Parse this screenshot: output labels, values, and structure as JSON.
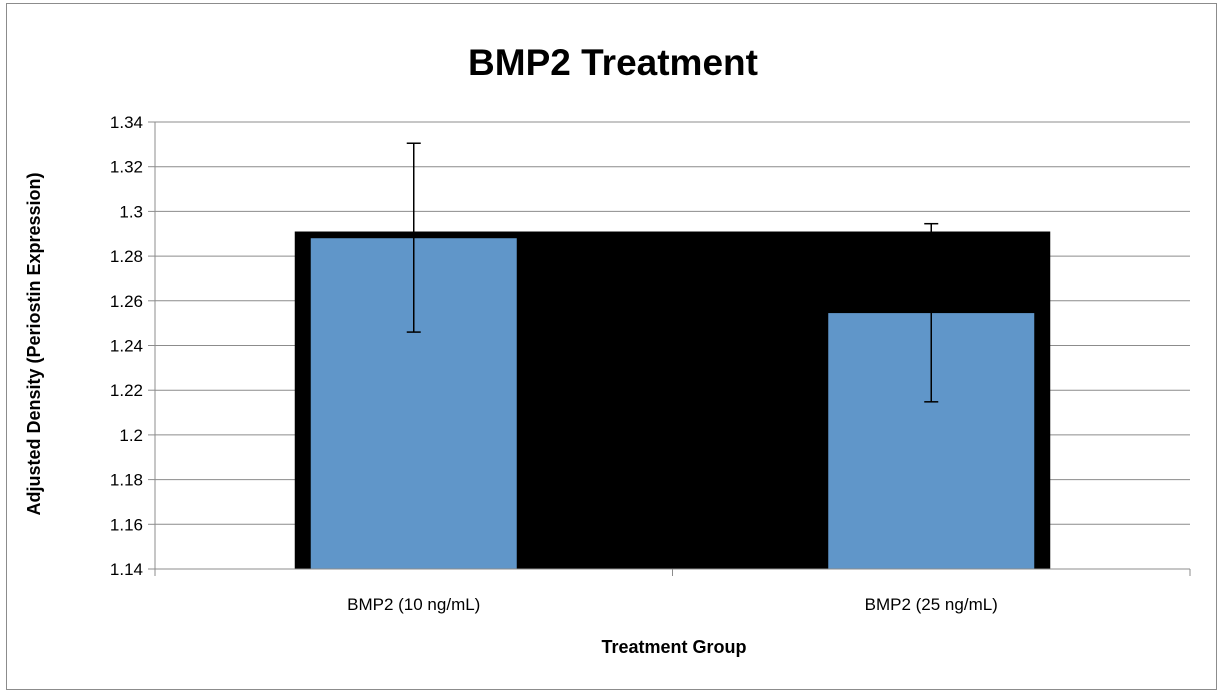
{
  "chart_data": {
    "type": "bar",
    "title": "BMP2 Treatment",
    "xlabel": "Treatment Group",
    "ylabel": "Adjusted Density (Periostin Expression)",
    "categories": [
      "BMP2 (10 ng/mL)",
      "BMP2 (25 ng/mL)"
    ],
    "series": [
      {
        "values": [
          1.288,
          1.2545
        ],
        "error_upper": [
          1.3305,
          1.2945
        ],
        "error_lower": [
          1.246,
          1.2148
        ],
        "color": "#6096c9"
      }
    ],
    "ylim": [
      1.14,
      1.34
    ],
    "yticks": [
      "1.34",
      "1.32",
      "1.3",
      "1.28",
      "1.26",
      "1.24",
      "1.22",
      "1.2",
      "1.18",
      "1.16",
      "1.14"
    ],
    "grid": true,
    "legend": "none",
    "background_block_color": "#000000",
    "background_block_top": 1.291
  }
}
